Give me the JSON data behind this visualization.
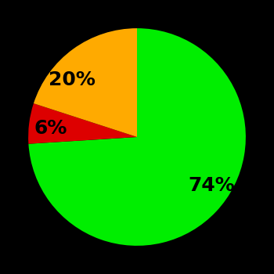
{
  "slices": [
    74,
    20,
    6
  ],
  "colors": [
    "#00ee00",
    "#ffaa00",
    "#dd0000"
  ],
  "labels": [
    "74%",
    "20%",
    "6%"
  ],
  "background_color": "#000000",
  "startangle": 90,
  "counterclock": false,
  "figsize": [
    3.5,
    3.5
  ],
  "dpi": 100,
  "label_fontsize": 18,
  "label_fontweight": "bold",
  "labeldistance": 0.65
}
